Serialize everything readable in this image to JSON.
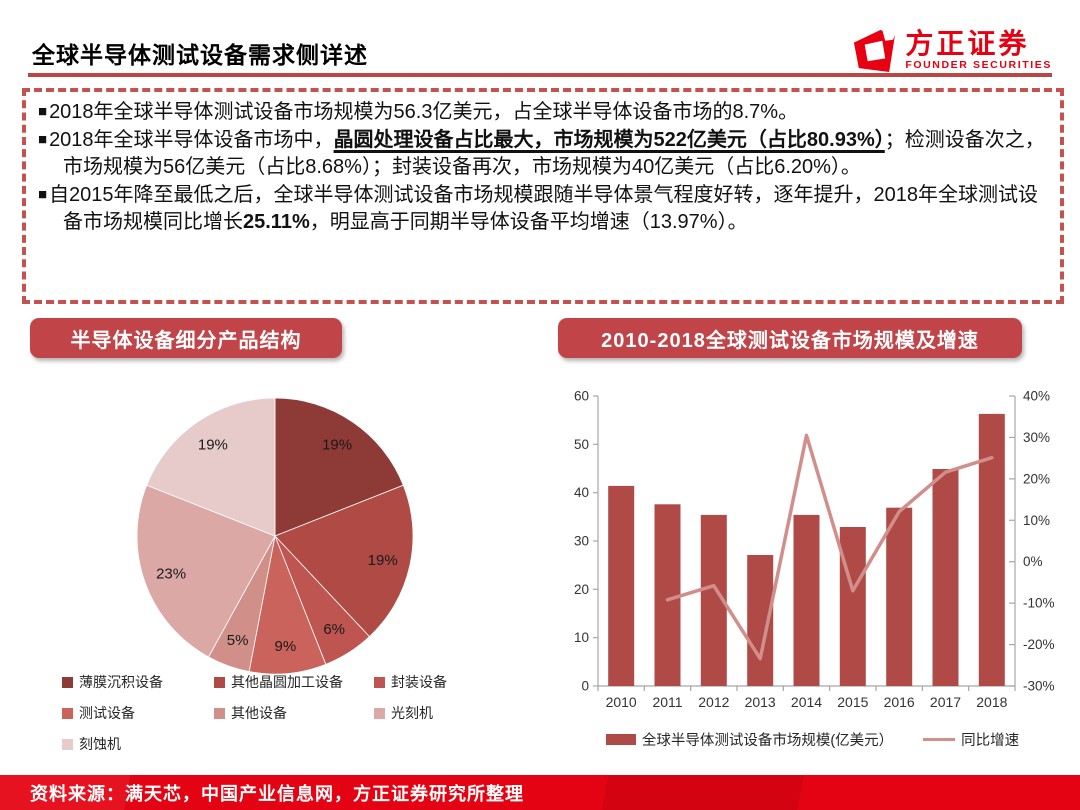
{
  "page": {
    "title": "全球半导体测试设备需求侧详述",
    "source_note": "资料来源：满天芯，中国产业信息网，方正证券研究所整理"
  },
  "logo": {
    "name_cn": "方正证券",
    "name_en": "FOUNDER SECURITIES",
    "brand_color": "#E60012"
  },
  "highlights": {
    "bullets": [
      [
        {
          "text": "2018年全球半导体测试设备市场规模为56.3亿美元，占全球半导体设备市场的8.7%。"
        }
      ],
      [
        {
          "text": "2018年全球半导体设备市场中，"
        },
        {
          "text": "晶圆处理设备占比最大，市场规模为522亿美元（占比80.93%）",
          "bold": true,
          "underline": true
        },
        {
          "text": "；检测设备次之，市场规模为56亿美元（占比8.68%）；封装设备再次，市场规模为40亿美元（占比6.20%）。"
        }
      ],
      [
        {
          "text": "自2015年降至最低之后，全球半导体测试设备市场规模跟随半导体景气程度好转，逐年提升，2018年全球测试设备市场规模同比增长"
        },
        {
          "text": "25.11%",
          "bold": true
        },
        {
          "text": "，明显高于同期半导体设备平均增速（13.97%）。"
        }
      ]
    ]
  },
  "sections": {
    "left_header": "半导体设备细分产品结构",
    "right_header": "2010-2018全球测试设备市场规模及增速"
  },
  "chart_data": [
    {
      "type": "pie",
      "title": "半导体设备细分产品结构",
      "labels": [
        "薄膜沉积设备",
        "其他晶圆加工设备",
        "封装设备",
        "测试设备",
        "其他设备",
        "光刻机",
        "刻蚀机"
      ],
      "values": [
        19,
        19,
        6,
        9,
        5,
        23,
        19
      ],
      "unit": "%",
      "colors": [
        "#8E3A37",
        "#AF4A45",
        "#BE5550",
        "#C9635C",
        "#D18F8A",
        "#DBA8A5",
        "#E7CBCA"
      ],
      "start_angle_deg": 0,
      "direction": "clockwise",
      "legend_position": "bottom"
    },
    {
      "type": "bar+line",
      "title": "2010-2018全球测试设备市场规模及增速",
      "categories": [
        "2010",
        "2011",
        "2012",
        "2013",
        "2014",
        "2015",
        "2016",
        "2017",
        "2018"
      ],
      "series": [
        {
          "name": "全球半导体测试设备市场规模(亿美元）",
          "type": "bar",
          "axis": "left",
          "color": "#AF4A47",
          "values": [
            41.4,
            37.6,
            35.4,
            27.1,
            35.4,
            32.9,
            36.9,
            44.9,
            56.3
          ]
        },
        {
          "name": "同比增速",
          "type": "line",
          "axis": "right",
          "color": "#D18E8B",
          "values": [
            null,
            -9.2,
            -5.8,
            -23.4,
            30.5,
            -7.0,
            12.1,
            21.6,
            25.1
          ]
        }
      ],
      "left_axis": {
        "min": 0,
        "max": 60,
        "step": 10,
        "ticks": [
          "0",
          "10",
          "20",
          "30",
          "40",
          "50",
          "60"
        ]
      },
      "right_axis": {
        "min": -30,
        "max": 40,
        "step": 10,
        "ticks": [
          "-30%",
          "-20%",
          "-10%",
          "0%",
          "10%",
          "20%",
          "30%",
          "40%"
        ]
      },
      "grid": false,
      "legend_position": "bottom"
    }
  ],
  "colors": {
    "accent_red": "#BB4643",
    "dashed_border": "#C4524F",
    "pill_red": "#C04448",
    "footer_red": "#E40312",
    "axis_gray": "#A6A6A6",
    "text_dark": "#262626"
  }
}
